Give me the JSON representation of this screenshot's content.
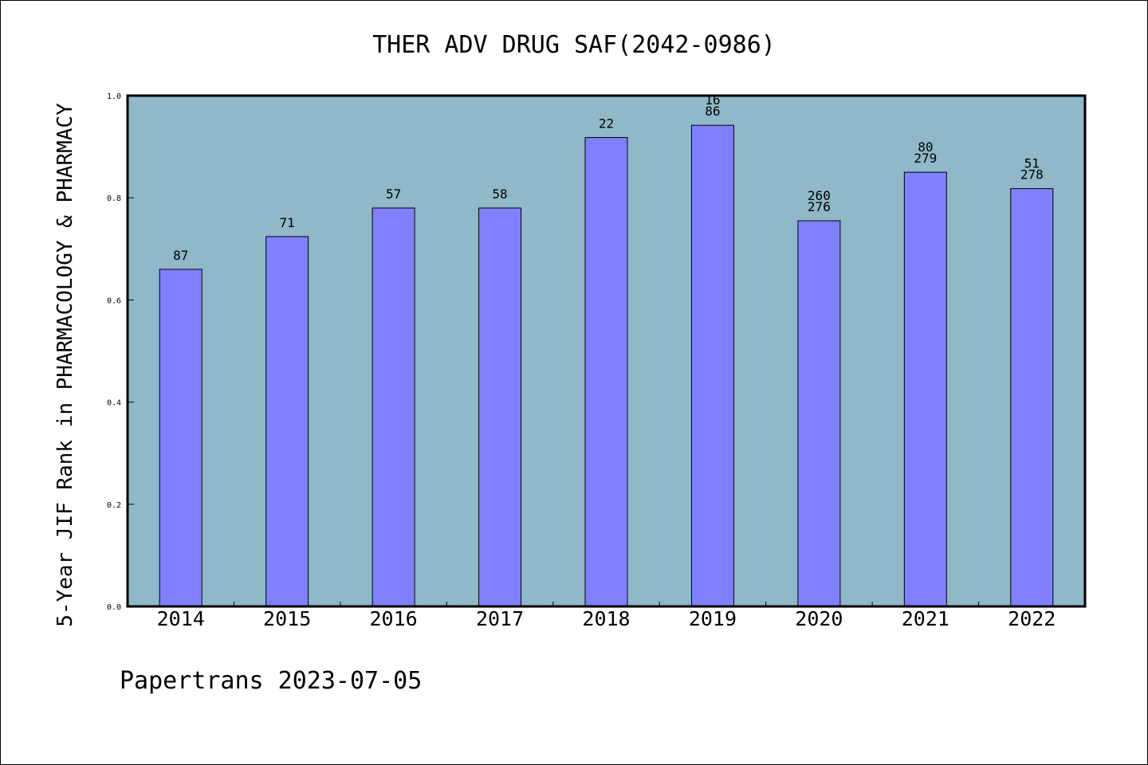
{
  "chart_data": {
    "type": "bar",
    "title": "THER ADV DRUG SAF(2042-0986)",
    "xlabel": "",
    "ylabel": "5-Year JIF Rank in PHARMACOLOGY & PHARMACY",
    "ylim": [
      0,
      1.0
    ],
    "yticks": [
      "0.0",
      "0.2",
      "0.4",
      "0.6",
      "0.8",
      "1.0"
    ],
    "categories": [
      "2014",
      "2015",
      "2016",
      "2017",
      "2018",
      "2019",
      "2020",
      "2021",
      "2022"
    ],
    "values": [
      0.66,
      0.724,
      0.78,
      0.78,
      0.918,
      0.942,
      0.755,
      0.85,
      0.818
    ],
    "labels": [
      [
        "87"
      ],
      [
        "71"
      ],
      [
        "57"
      ],
      [
        "58"
      ],
      [
        "22"
      ],
      [
        "16",
        "86"
      ],
      [
        "260",
        "276"
      ],
      [
        "80",
        "279"
      ],
      [
        "51",
        "278"
      ]
    ],
    "grid": false,
    "legend": "none",
    "colors": {
      "bar": "#8080ff",
      "plot_background": "#8fb8c8",
      "bar_edge": "#000000"
    }
  },
  "footer": "Papertrans 2023-07-05"
}
